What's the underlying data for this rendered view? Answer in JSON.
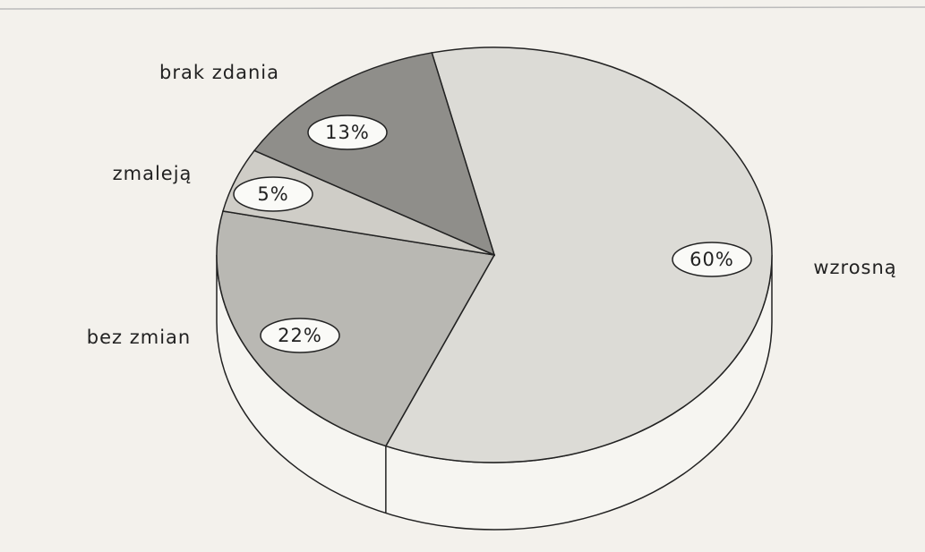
{
  "chart_data": {
    "type": "pie",
    "categories": [
      "wzrosną",
      "bez zmian",
      "zmaleją",
      "brak zdania"
    ],
    "values": [
      60,
      22,
      5,
      13
    ],
    "value_labels": [
      "60%",
      "22%",
      "5%",
      "13%"
    ],
    "colors": [
      "#dcdbd6",
      "#b9b8b3",
      "#cfcdc7",
      "#8f8e8a"
    ]
  }
}
